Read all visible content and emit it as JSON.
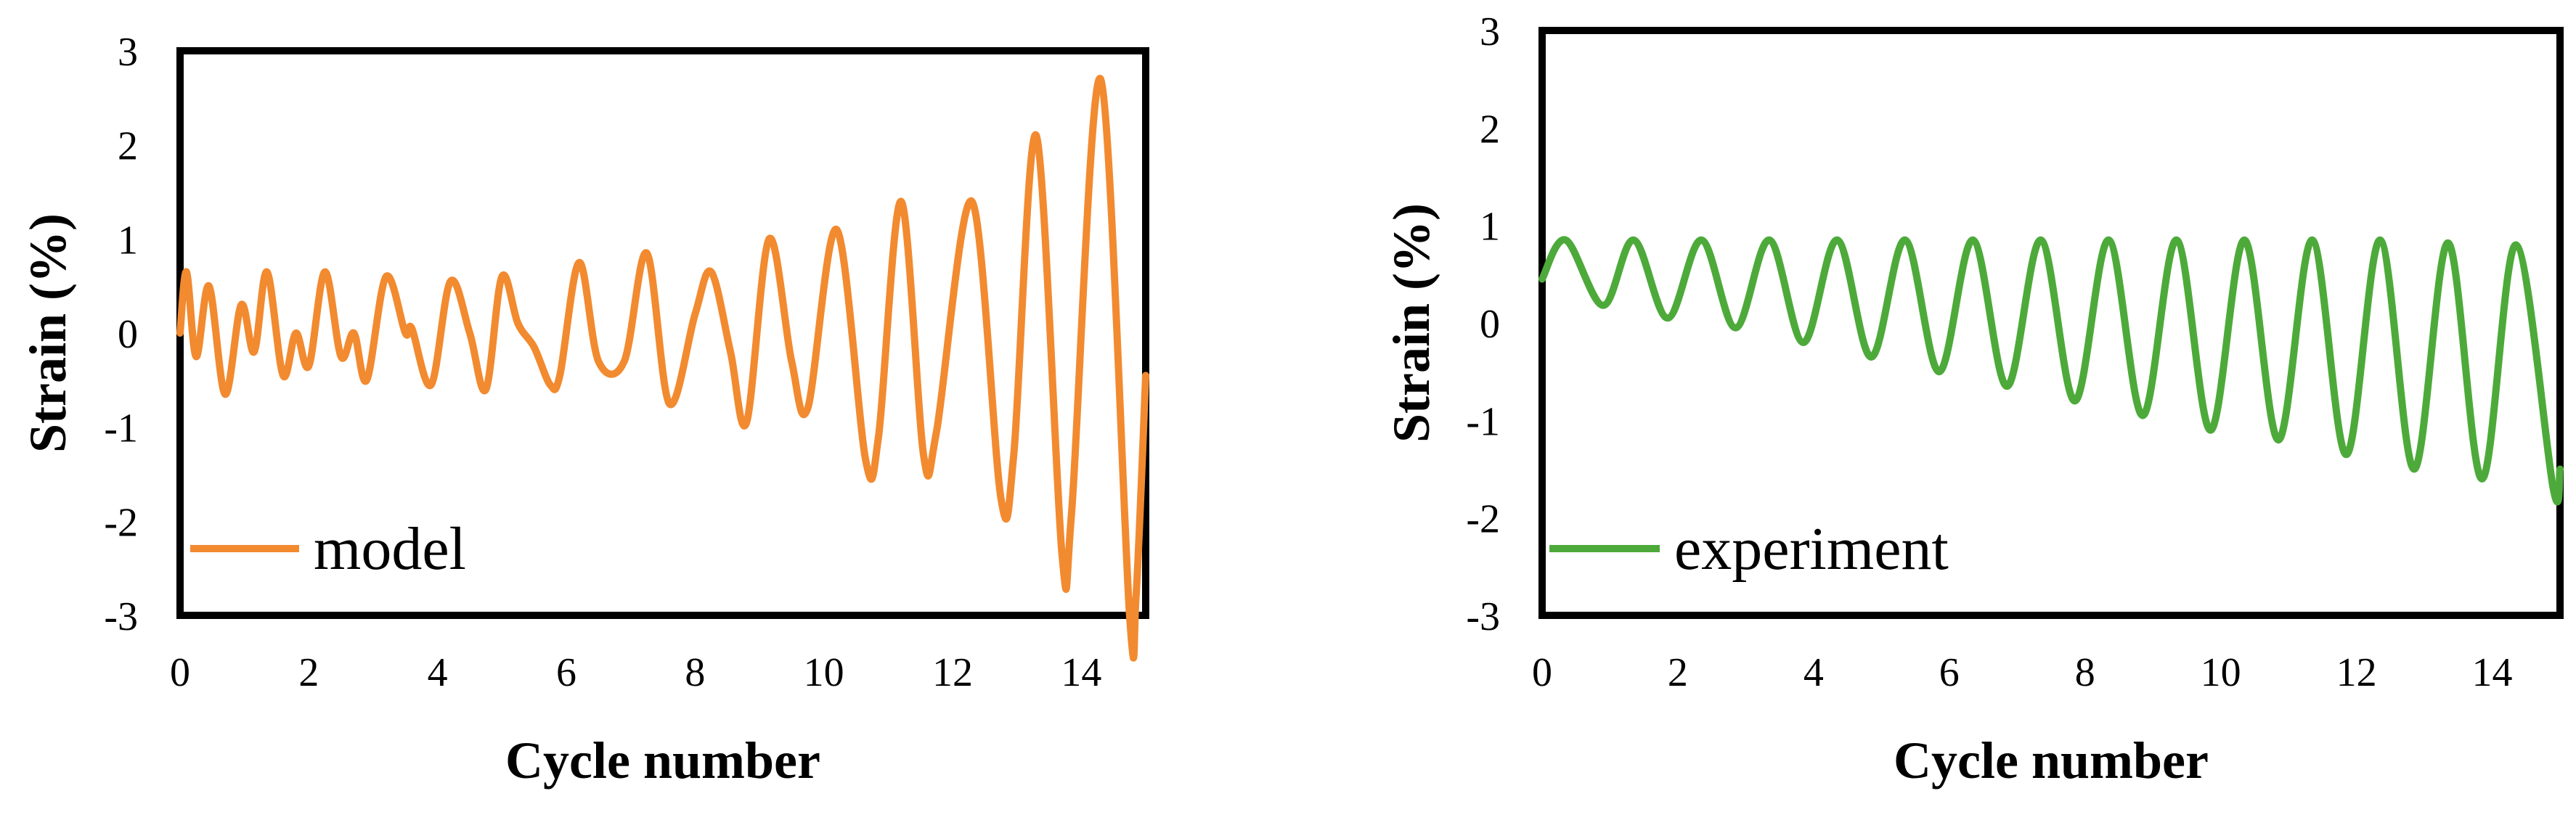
{
  "chart_data": [
    {
      "type": "line",
      "xlabel": "Cycle number",
      "ylabel": "Strain (%)",
      "xlim": [
        0,
        15
      ],
      "ylim": [
        -3,
        3
      ],
      "xticks": [
        "0",
        "2",
        "4",
        "6",
        "8",
        "10",
        "12",
        "14"
      ],
      "yticks": [
        "-3",
        "-2",
        "-1",
        "0",
        "1",
        "2",
        "3"
      ],
      "grid": false,
      "legend": "bottom-left",
      "series": [
        {
          "name": "model",
          "color": "#F28A30",
          "x": [
            0,
            0.1,
            0.25,
            0.45,
            0.7,
            0.95,
            1.15,
            1.35,
            1.6,
            1.8,
            2.0,
            2.25,
            2.5,
            2.7,
            2.9,
            3.2,
            3.5,
            3.6,
            3.9,
            4.2,
            4.5,
            4.75,
            5.0,
            5.25,
            5.5,
            5.75,
            5.9,
            6.2,
            6.5,
            6.9,
            7.25,
            7.6,
            8.0,
            8.25,
            8.55,
            8.8,
            9.15,
            9.5,
            9.75,
            10.2,
            10.65,
            10.85,
            11.2,
            11.55,
            11.75,
            12.3,
            12.75,
            12.95,
            13.3,
            13.7,
            13.85,
            14.3,
            14.75,
            14.85,
            15.0
          ],
          "values": [
            0.0,
            0.65,
            -0.25,
            0.5,
            -0.65,
            0.3,
            -0.2,
            0.65,
            -0.45,
            0.0,
            -0.35,
            0.65,
            -0.25,
            0.0,
            -0.5,
            0.6,
            0.0,
            0.05,
            -0.55,
            0.55,
            0.0,
            -0.6,
            0.6,
            0.1,
            -0.15,
            -0.55,
            -0.45,
            0.75,
            -0.3,
            -0.3,
            0.85,
            -0.75,
            0.2,
            0.65,
            -0.2,
            -0.95,
            1.0,
            -0.3,
            -0.8,
            1.1,
            -1.35,
            -1.1,
            1.4,
            -1.3,
            -1.05,
            1.4,
            -1.75,
            -1.3,
            2.1,
            -2.35,
            -1.9,
            2.7,
            -3.0,
            -2.8,
            -0.45
          ]
        }
      ]
    },
    {
      "type": "line",
      "xlabel": "Cycle number",
      "ylabel": "Strain (%)",
      "xlim": [
        0,
        15
      ],
      "ylim": [
        -3,
        3
      ],
      "xticks": [
        "0",
        "2",
        "4",
        "6",
        "8",
        "10",
        "12",
        "14"
      ],
      "yticks": [
        "-3",
        "-2",
        "-1",
        "0",
        "1",
        "2",
        "3"
      ],
      "grid": false,
      "legend": "bottom-left",
      "series": [
        {
          "name": "experiment",
          "color": "#4DAA3A",
          "x": [
            0,
            0.35,
            0.9,
            1.35,
            1.85,
            2.35,
            2.85,
            3.35,
            3.85,
            4.35,
            4.85,
            5.35,
            5.85,
            6.35,
            6.85,
            7.35,
            7.85,
            8.35,
            8.85,
            9.35,
            9.85,
            10.35,
            10.85,
            11.35,
            11.85,
            12.35,
            12.85,
            13.35,
            13.85,
            14.35,
            14.9,
            15.0
          ],
          "values": [
            0.45,
            0.85,
            0.18,
            0.85,
            0.05,
            0.85,
            -0.05,
            0.85,
            -0.2,
            0.85,
            -0.35,
            0.85,
            -0.5,
            0.85,
            -0.65,
            0.85,
            -0.8,
            0.85,
            -0.95,
            0.85,
            -1.1,
            0.85,
            -1.2,
            0.85,
            -1.35,
            0.85,
            -1.5,
            0.82,
            -1.6,
            0.8,
            -1.7,
            -1.5
          ]
        }
      ]
    }
  ]
}
